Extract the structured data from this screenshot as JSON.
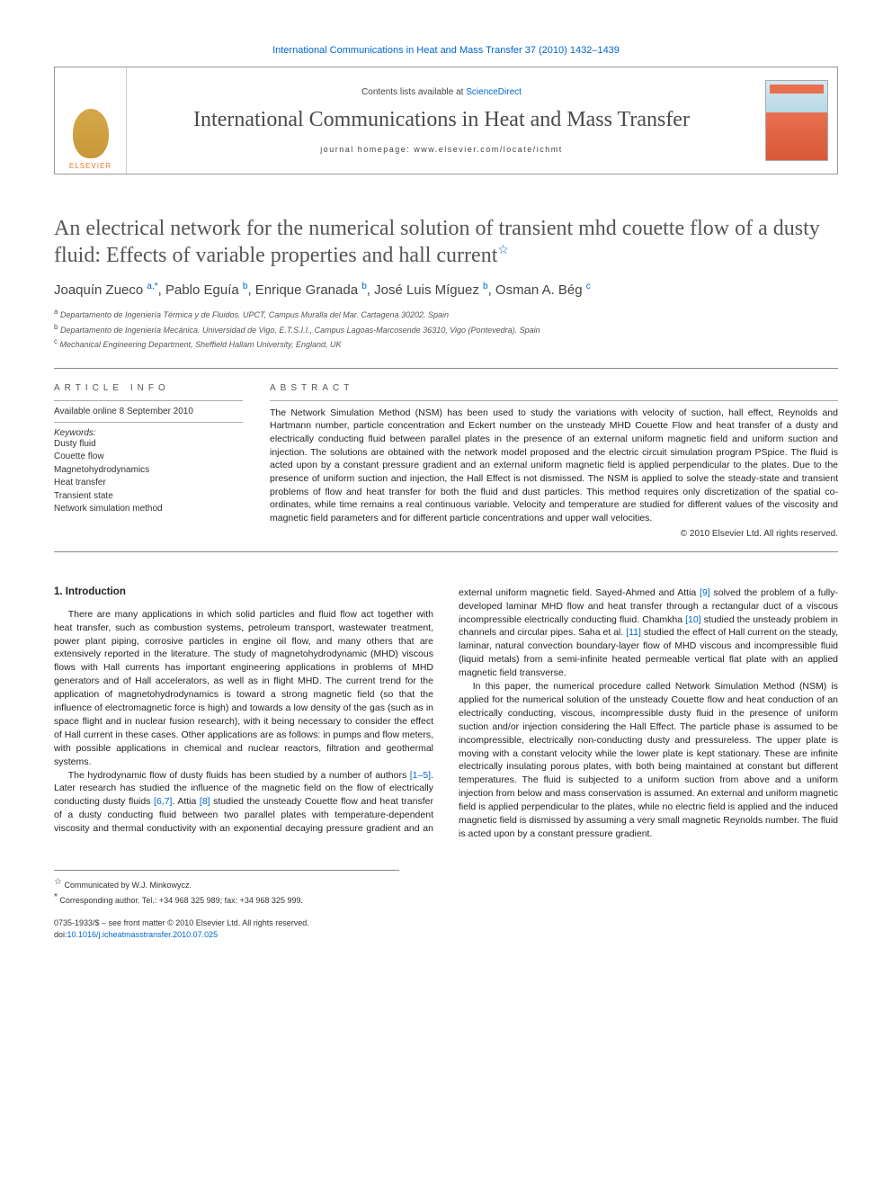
{
  "top_link": "International Communications in Heat and Mass Transfer 37 (2010) 1432–1439",
  "header": {
    "publisher": "ELSEVIER",
    "contents_prefix": "Contents lists available at ",
    "contents_link": "ScienceDirect",
    "journal": "International Communications in Heat and Mass Transfer",
    "homepage_prefix": "journal homepage: ",
    "homepage": "www.elsevier.com/locate/ichmt"
  },
  "title": "An electrical network for the numerical solution of transient mhd couette flow of a dusty fluid: Effects of variable properties and hall current",
  "authors_html": "Joaquín Zueco <span class='sup'>a,</span><span class='sup star'>*</span>, Pablo Eguía <span class='sup'>b</span>, Enrique Granada <span class='sup'>b</span>, José Luis Míguez <span class='sup'>b</span>, Osman A. Bég <span class='sup'>c</span>",
  "affiliations": [
    {
      "label": "a",
      "text": "Departamento de Ingeniería Térmica y de Fluidos. UPCT, Campus Muralla del Mar. Cartagena 30202. Spain"
    },
    {
      "label": "b",
      "text": "Departamento de Ingeniería Mecánica. Universidad de Vigo, E.T.S.I.I., Campus Lagoas-Marcosende 36310, Vigo (Pontevedra). Spain"
    },
    {
      "label": "c",
      "text": "Mechanical Engineering Department, Sheffield Hallam University, England, UK"
    }
  ],
  "info": {
    "head": "ARTICLE INFO",
    "online": "Available online 8 September 2010",
    "kw_head": "Keywords:",
    "keywords": [
      "Dusty fluid",
      "Couette flow",
      "Magnetohydrodynamics",
      "Heat transfer",
      "Transient state",
      "Network simulation method"
    ]
  },
  "abstract": {
    "head": "ABSTRACT",
    "text": "The Network Simulation Method (NSM) has been used to study the variations with velocity of suction, hall effect, Reynolds and Hartmann number, particle concentration and Eckert number on the unsteady MHD Couette Flow and heat transfer of a dusty and electrically conducting fluid between parallel plates in the presence of an external uniform magnetic field and uniform suction and injection. The solutions are obtained with the network model proposed and the electric circuit simulation program PSpice. The fluid is acted upon by a constant pressure gradient and an external uniform magnetic field is applied perpendicular to the plates. Due to the presence of uniform suction and injection, the Hall Effect is not dismissed. The NSM is applied to solve the steady-state and transient problems of flow and heat transfer for both the fluid and dust particles. This method requires only discretization of the spatial co-ordinates, while time remains a real continuous variable. Velocity and temperature are studied for different values of the viscosity and magnetic field parameters and for different particle concentrations and upper wall velocities.",
    "copyright": "© 2010 Elsevier Ltd. All rights reserved."
  },
  "section_head": "1. Introduction",
  "body": {
    "p1": "There are many applications in which solid particles and fluid flow act together with heat transfer, such as combustion systems, petroleum transport, wastewater treatment, power plant piping, corrosive particles in engine oil flow, and many others that are extensively reported in the literature. The study of magnetohydrodynamic (MHD) viscous flows with Hall currents has important engineering applications in problems of MHD generators and of Hall accelerators, as well as in flight MHD. The current trend for the application of magnetohydrodynamics is toward a strong magnetic field (so that the influence of electromagnetic force is high) and towards a low density of the gas (such as in space flight and in nuclear fusion research), with it being necessary to consider the effect of Hall current in these cases. Other applications are as follows: in pumps and flow meters, with possible applications in chemical and nuclear reactors, filtration and geothermal systems.",
    "p2_a": "The hydrodynamic flow of dusty fluids has been studied by a number of authors ",
    "p2_c1": "[1–5]",
    "p2_b": ". Later research has studied the influence of the magnetic field on the flow of electrically conducting dusty fluids ",
    "p2_c2": "[6,7]",
    "p2_c": ". Attia ",
    "p2_c3": "[8]",
    "p2_d": " studied the unsteady Couette flow and heat transfer of a dusty conducting fluid between two parallel plates with temperature-",
    "p3_a": "dependent viscosity and thermal conductivity with an exponential decaying pressure gradient and an external uniform magnetic field. Sayed-Ahmed and Attia ",
    "p3_c1": "[9]",
    "p3_b": " solved the problem of a fully-developed laminar MHD flow and heat transfer through a rectangular duct of a viscous incompressible electrically conducting fluid. Chamkha ",
    "p3_c2": "[10]",
    "p3_c": " studied the unsteady problem in channels and circular pipes. Saha et al. ",
    "p3_c3": "[11]",
    "p3_d": " studied the effect of Hall current on the steady, laminar, natural convection boundary-layer flow of MHD viscous and incompressible fluid (liquid metals) from a semi-infinite heated permeable vertical flat plate with an applied magnetic field transverse.",
    "p4": "In this paper, the numerical procedure called Network Simulation Method (NSM) is applied for the numerical solution of the unsteady Couette flow and heat conduction of an electrically conducting, viscous, incompressible dusty fluid in the presence of uniform suction and/or injection considering the Hall Effect. The particle phase is assumed to be incompressible, electrically non-conducting dusty and pressureless. The upper plate is moving with a constant velocity while the lower plate is kept stationary. These are infinite electrically insulating porous plates, with both being maintained at constant but different temperatures. The fluid is subjected to a uniform suction from above and a uniform injection from below and mass conservation is assumed. An external and uniform magnetic field is applied perpendicular to the plates, while no electric field is applied and the induced magnetic field is dismissed by assuming a very small magnetic Reynolds number. The fluid is acted upon by a constant pressure gradient."
  },
  "footnotes": {
    "communicated": "Communicated by W.J. Minkowycz.",
    "corr": "Corresponding author. Tel.: +34 968 325 989; fax: +34 968 325 999."
  },
  "bottom": {
    "issn": "0735-1933/$ – see front matter © 2010 Elsevier Ltd. All rights reserved.",
    "doi_label": "doi:",
    "doi": "10.1016/j.icheatmasstransfer.2010.07.025"
  },
  "colors": {
    "link": "#0066cc",
    "text": "#222222",
    "muted": "#555555",
    "orange": "#e87722"
  }
}
